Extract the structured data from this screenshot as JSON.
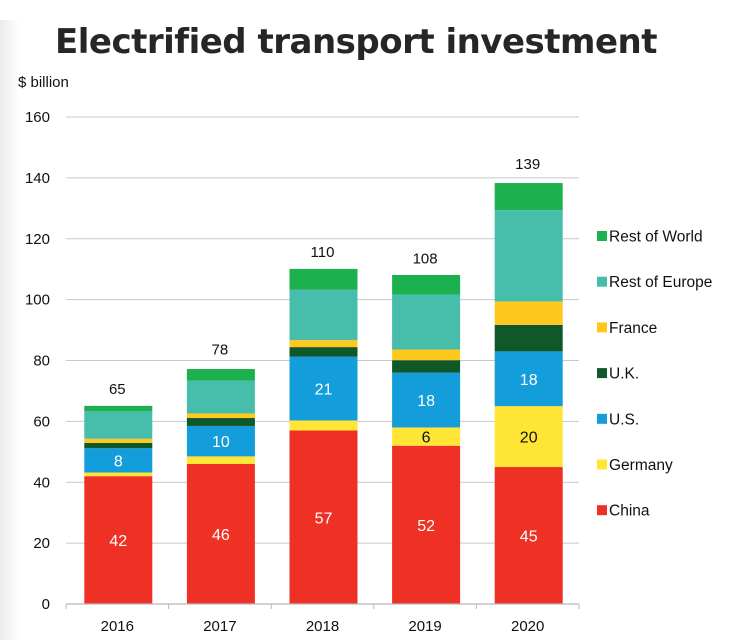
{
  "chart_data": {
    "type": "bar",
    "stacked": true,
    "title": "Electrified transport investment",
    "ylabel": "$ billion",
    "xlabel": "",
    "ylim": [
      0,
      160
    ],
    "yticks": [
      0,
      20,
      40,
      60,
      80,
      100,
      120,
      140,
      160
    ],
    "grid": true,
    "legend_position": "right",
    "categories": [
      "2016",
      "2017",
      "2018",
      "2019",
      "2020"
    ],
    "totals": [
      65,
      78,
      110,
      108,
      139
    ],
    "series": [
      {
        "name": "China",
        "color": "#EE3124",
        "label_color": "#ffffff",
        "values": [
          42,
          46,
          57,
          52,
          45
        ],
        "labels": [
          "42",
          "46",
          "57",
          "52",
          "45"
        ]
      },
      {
        "name": "Germany",
        "color": "#FFE535",
        "label_color": "#111111",
        "values": [
          1.2,
          2.5,
          3.3,
          6,
          20
        ],
        "labels": [
          "",
          "",
          "",
          "6",
          "20"
        ]
      },
      {
        "name": "U.S.",
        "color": "#139DDB",
        "label_color": "#ffffff",
        "values": [
          8,
          10,
          21,
          18,
          18
        ],
        "labels": [
          "8",
          "10",
          "21",
          "18",
          "18"
        ]
      },
      {
        "name": "U.K.",
        "color": "#10572A",
        "label_color": "#ffffff",
        "values": [
          1.7,
          2.6,
          3.1,
          4.1,
          8.7
        ],
        "labels": [
          "",
          "",
          "",
          "",
          ""
        ]
      },
      {
        "name": "France",
        "color": "#FFC81E",
        "label_color": "#111111",
        "values": [
          1.4,
          1.5,
          2.3,
          3.5,
          7.7
        ],
        "labels": [
          "",
          "",
          "",
          "",
          ""
        ]
      },
      {
        "name": "Rest of Europe",
        "color": "#47BDAC",
        "label_color": "#111111",
        "values": [
          9,
          10.8,
          16.6,
          18.1,
          30
        ],
        "labels": [
          "",
          "",
          "",
          "",
          ""
        ]
      },
      {
        "name": "Rest of World",
        "color": "#1DB04E",
        "label_color": "#111111",
        "values": [
          1.8,
          3.8,
          6.8,
          6.4,
          8.9
        ],
        "labels": [
          "",
          "",
          "",
          "",
          ""
        ]
      }
    ],
    "legend_order": [
      "Rest of World",
      "Rest of Europe",
      "France",
      "U.K.",
      "U.S.",
      "Germany",
      "China"
    ]
  }
}
